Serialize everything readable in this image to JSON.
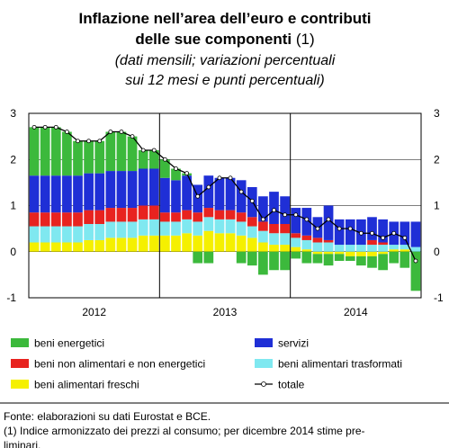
{
  "chart_data": {
    "type": "stacked_bar_line",
    "title": [
      "Inflazione nell’area dell’euro e contributi",
      "delle sue componenti"
    ],
    "title_note": "(1)",
    "subtitle": [
      "(dati mensili; variazioni percentuali",
      "sui 12 mesi e punti percentuali)"
    ],
    "categories": [
      null,
      null,
      null,
      null,
      null,
      null,
      null,
      null,
      null,
      null,
      null,
      null,
      null,
      null,
      null,
      null,
      null,
      null,
      null,
      null,
      null,
      null,
      null,
      null,
      null,
      null,
      null,
      null,
      null,
      null,
      null,
      null,
      null,
      null,
      null,
      null
    ],
    "year_labels": [
      "2012",
      "2013",
      "2014"
    ],
    "ylim": [
      -1,
      3
    ],
    "yticks": [
      -1,
      0,
      1,
      2,
      3
    ],
    "grid": true,
    "series": [
      {
        "name": "beni energetici",
        "color": "#3cb93c",
        "values": [
          1.05,
          1.05,
          1.05,
          0.95,
          0.75,
          0.7,
          0.7,
          0.85,
          0.85,
          0.75,
          0.4,
          0.4,
          0.4,
          0.25,
          0.05,
          -0.25,
          -0.25,
          0.0,
          0.0,
          -0.25,
          -0.3,
          -0.5,
          -0.4,
          -0.4,
          -0.15,
          -0.25,
          -0.2,
          -0.25,
          -0.15,
          -0.1,
          -0.2,
          -0.25,
          -0.35,
          -0.25,
          -0.35,
          -0.85
        ]
      },
      {
        "name": "servizi",
        "color": "#1f2fd6",
        "values": [
          0.8,
          0.8,
          0.8,
          0.8,
          0.8,
          0.8,
          0.8,
          0.8,
          0.8,
          0.8,
          0.8,
          0.8,
          0.75,
          0.7,
          0.75,
          0.6,
          0.7,
          0.7,
          0.7,
          0.7,
          0.65,
          0.55,
          0.7,
          0.6,
          0.55,
          0.6,
          0.45,
          0.75,
          0.55,
          0.55,
          0.55,
          0.5,
          0.5,
          0.5,
          0.5,
          0.55
        ]
      },
      {
        "name": "beni non alimentari e non energetici",
        "color": "#e8231f",
        "values": [
          0.3,
          0.3,
          0.3,
          0.3,
          0.3,
          0.3,
          0.3,
          0.3,
          0.3,
          0.3,
          0.3,
          0.3,
          0.2,
          0.2,
          0.2,
          0.2,
          0.2,
          0.2,
          0.2,
          0.2,
          0.2,
          0.2,
          0.2,
          0.2,
          0.1,
          0.1,
          0.1,
          0.05,
          0.0,
          0.0,
          0.0,
          0.1,
          0.05,
          0.0,
          0.0,
          0.0
        ]
      },
      {
        "name": "beni alimentari trasformati",
        "color": "#7fe8f0",
        "values": [
          0.35,
          0.35,
          0.35,
          0.35,
          0.35,
          0.35,
          0.35,
          0.35,
          0.35,
          0.35,
          0.35,
          0.35,
          0.3,
          0.3,
          0.3,
          0.3,
          0.3,
          0.3,
          0.3,
          0.3,
          0.25,
          0.25,
          0.25,
          0.25,
          0.2,
          0.2,
          0.2,
          0.2,
          0.15,
          0.15,
          0.15,
          0.15,
          0.15,
          0.1,
          0.1,
          0.1
        ]
      },
      {
        "name": "beni alimentari freschi",
        "color": "#f5f000",
        "values": [
          0.2,
          0.2,
          0.2,
          0.2,
          0.2,
          0.25,
          0.25,
          0.3,
          0.3,
          0.3,
          0.35,
          0.35,
          0.35,
          0.35,
          0.4,
          0.35,
          0.45,
          0.4,
          0.4,
          0.35,
          0.3,
          0.2,
          0.15,
          0.15,
          0.1,
          0.05,
          -0.05,
          -0.05,
          -0.05,
          -0.1,
          -0.1,
          -0.1,
          -0.05,
          0.05,
          0.05,
          0.0
        ]
      },
      {
        "name": "totale",
        "type": "line",
        "color": "#000000",
        "values": [
          2.7,
          2.7,
          2.7,
          2.6,
          2.4,
          2.4,
          2.4,
          2.6,
          2.6,
          2.5,
          2.2,
          2.2,
          2.0,
          1.8,
          1.7,
          1.2,
          1.4,
          1.6,
          1.6,
          1.3,
          1.1,
          0.7,
          0.9,
          0.8,
          0.8,
          0.7,
          0.5,
          0.7,
          0.5,
          0.5,
          0.4,
          0.4,
          0.3,
          0.4,
          0.3,
          -0.2
        ]
      }
    ],
    "notes": [
      "Fonte: elaborazioni su dati Eurostat e BCE.",
      "(1) Indice armonizzato dei prezzi al consumo; per dicembre 2014 stime pre-",
      "liminari."
    ]
  }
}
